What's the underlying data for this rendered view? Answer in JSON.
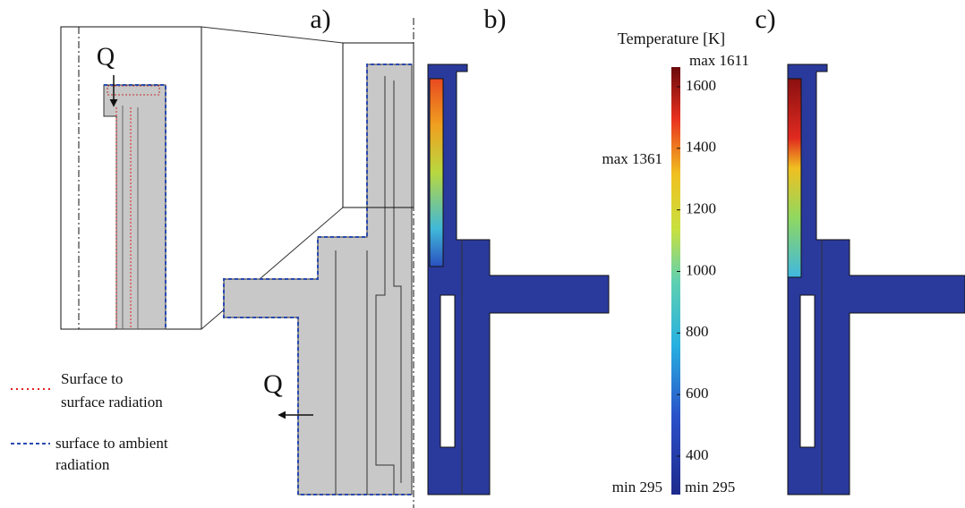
{
  "panels": [
    "a)",
    "b)",
    "c)"
  ],
  "heat_labels": [
    "Q",
    "Q"
  ],
  "legend": {
    "surface_to_surface": [
      "Surface to",
      "surface radiation"
    ],
    "surface_to_ambient": [
      "surface to ambient",
      "radiation"
    ]
  },
  "colorbar": {
    "title": "Temperature [K]",
    "ticks": [
      400,
      600,
      800,
      1000,
      1200,
      1400,
      1600
    ],
    "min": {
      "value": 295,
      "label": "min 295"
    },
    "max": {
      "value": 1611,
      "label": "max 1611"
    }
  },
  "annotations": {
    "b_max": {
      "value": 1361,
      "label": "max 1361"
    },
    "b_min": {
      "value": 295,
      "label": "min 295"
    }
  }
}
